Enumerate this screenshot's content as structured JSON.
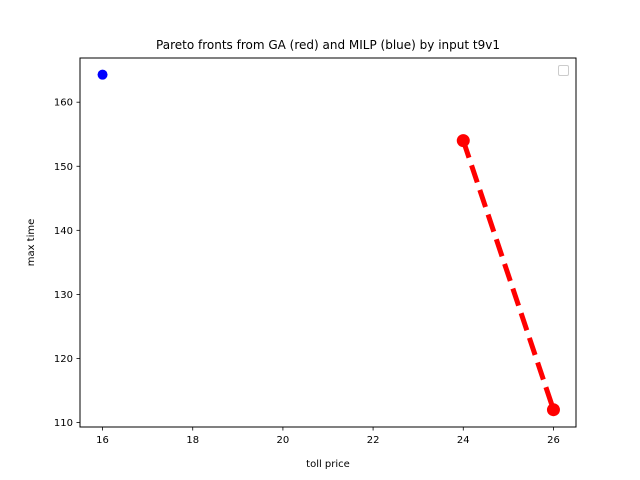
{
  "chart_data": {
    "type": "line",
    "title": "Pareto fronts from GA (red) and MILP (blue) by input t9v1",
    "xlabel": "toll price",
    "ylabel": "max time",
    "xlim": [
      15.5,
      26.5
    ],
    "ylim": [
      109.3,
      166.9
    ],
    "xticks": [
      16,
      18,
      20,
      22,
      24,
      26
    ],
    "yticks": [
      110,
      120,
      130,
      140,
      150,
      160
    ],
    "grid": false,
    "legend": {
      "placement": "top-right",
      "entries": []
    },
    "series": [
      {
        "color": "#ff0000",
        "style": "dashed",
        "marker": "circle",
        "points": [
          {
            "x": 24,
            "y": 154
          },
          {
            "x": 26,
            "y": 112
          }
        ]
      },
      {
        "color": "#0000ff",
        "style": "none",
        "marker": "circle",
        "points": [
          {
            "x": 16,
            "y": 164.3
          }
        ]
      }
    ]
  }
}
